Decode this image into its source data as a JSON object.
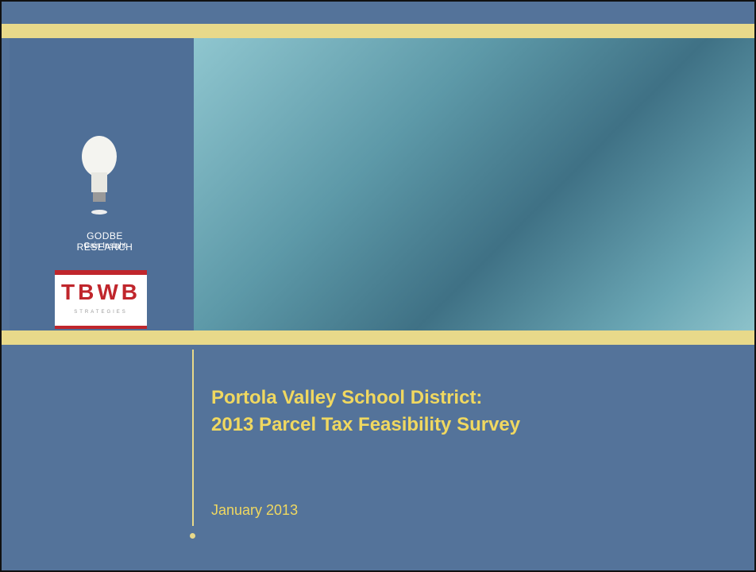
{
  "sidebar": {
    "brand": "GODBE RESEARCH",
    "tagline": "Gain Insight",
    "partner": "TBWB",
    "partner_sub": "STRATEGIES"
  },
  "title_lines": [
    "Portola Valley School District:",
    "2013 Parcel Tax Feasibility Survey"
  ],
  "date": "January 2013"
}
